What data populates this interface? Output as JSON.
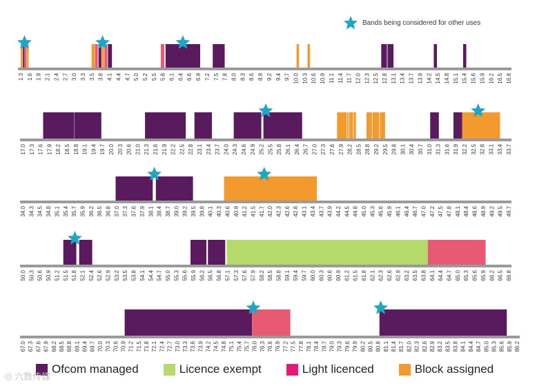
{
  "colors": {
    "ofcom_managed": "#5a1a5e",
    "licence_exempt": "#b5d96b",
    "light_licenced": "#e85a72",
    "block_assigned": "#f39a2e",
    "star": "#1fa6c4",
    "axis": "#9a9a9a"
  },
  "star_legend": {
    "label": "Bands being considered for other uses",
    "icon": "star-icon"
  },
  "legend": [
    {
      "label": "Ofcom managed",
      "color": "#5a1a5e"
    },
    {
      "label": "Licence exempt",
      "color": "#b5d96b"
    },
    {
      "label": "Light licenced",
      "color": "#e85a72"
    },
    {
      "label": "Block assigned",
      "color": "#f39a2e"
    }
  ],
  "watermark": {
    "text": "六数传媒"
  },
  "chart_data": [
    {
      "type": "bar",
      "xlabel": "",
      "ylabel": "",
      "x_range": [
        1.3,
        16.8
      ],
      "ticks": [
        "1.3",
        "1.6",
        "1.9",
        "2.1",
        "2.4",
        "2.7",
        "3.0",
        "3.3",
        "3.5",
        "3.8",
        "4.1",
        "4.4",
        "4.7",
        "5.0",
        "5.2",
        "5.5",
        "5.8",
        "6.1",
        "6.4",
        "6.6",
        "6.9",
        "7.2",
        "7.5",
        "7.8",
        "8.0",
        "8.3",
        "8.6",
        "8.9",
        "9.2",
        "9.4",
        "9.7",
        "10.0",
        "10.3",
        "10.6",
        "10.9",
        "11.1",
        "11.4",
        "11.7",
        "12.0",
        "12.3",
        "12.5",
        "12.8",
        "13.1",
        "13.4",
        "13.7",
        "13.9",
        "14.2",
        "14.5",
        "14.8",
        "15.1",
        "15.4",
        "15.6",
        "15.9",
        "16.2",
        "16.5",
        "16.8"
      ],
      "bands": [
        {
          "start": 1.3,
          "end": 1.36,
          "category": "block_assigned"
        },
        {
          "start": 1.37,
          "end": 1.42,
          "category": "ofcom_managed"
        },
        {
          "start": 1.43,
          "end": 1.48,
          "category": "light_licenced"
        },
        {
          "start": 1.49,
          "end": 1.55,
          "category": "block_assigned"
        },
        {
          "start": 3.55,
          "end": 3.65,
          "category": "block_assigned"
        },
        {
          "start": 3.66,
          "end": 3.75,
          "category": "light_licenced"
        },
        {
          "start": 3.77,
          "end": 3.86,
          "category": "ofcom_managed"
        },
        {
          "start": 3.87,
          "end": 3.95,
          "category": "block_assigned"
        },
        {
          "start": 3.96,
          "end": 4.05,
          "category": "light_licenced"
        },
        {
          "start": 4.07,
          "end": 4.2,
          "category": "ofcom_managed"
        },
        {
          "start": 5.75,
          "end": 5.86,
          "category": "light_licenced"
        },
        {
          "start": 5.9,
          "end": 7.0,
          "category": "ofcom_managed"
        },
        {
          "start": 7.4,
          "end": 7.78,
          "category": "ofcom_managed"
        },
        {
          "start": 10.06,
          "end": 10.14,
          "category": "block_assigned"
        },
        {
          "start": 10.41,
          "end": 10.49,
          "category": "block_assigned"
        },
        {
          "start": 12.75,
          "end": 12.93,
          "category": "ofcom_managed"
        },
        {
          "start": 12.95,
          "end": 13.14,
          "category": "ofcom_managed"
        },
        {
          "start": 14.42,
          "end": 14.52,
          "category": "ofcom_managed"
        },
        {
          "start": 15.35,
          "end": 15.45,
          "category": "ofcom_managed"
        }
      ],
      "stars": [
        1.42,
        3.9,
        6.45
      ]
    },
    {
      "type": "bar",
      "xlabel": "",
      "ylabel": "",
      "x_range": [
        17.0,
        33.7
      ],
      "ticks": [
        "17.0",
        "17.3",
        "17.6",
        "17.9",
        "18.2",
        "18.5",
        "18.8",
        "19.1",
        "19.4",
        "19.7",
        "20.0",
        "20.3",
        "20.6",
        "21.0",
        "21.3",
        "21.6",
        "21.9",
        "22.2",
        "22.5",
        "22.8",
        "23.1",
        "23.4",
        "23.7",
        "24.0",
        "24.3",
        "24.6",
        "24.9",
        "25.2",
        "25.5",
        "25.8",
        "26.1",
        "26.4",
        "26.7",
        "27.0",
        "27.3",
        "27.6",
        "27.9",
        "28.2",
        "28.5",
        "28.8",
        "29.2",
        "29.5",
        "29.8",
        "30.1",
        "30.4",
        "30.7",
        "31.0",
        "31.3",
        "31.6",
        "31.9",
        "32.2",
        "32.5",
        "32.8",
        "33.1",
        "33.4",
        "33.7"
      ],
      "bands": [
        {
          "start": 17.7,
          "end": 18.77,
          "category": "ofcom_managed"
        },
        {
          "start": 18.78,
          "end": 19.7,
          "category": "ofcom_managed"
        },
        {
          "start": 21.2,
          "end": 22.6,
          "category": "ofcom_managed"
        },
        {
          "start": 22.9,
          "end": 23.5,
          "category": "ofcom_managed"
        },
        {
          "start": 24.25,
          "end": 25.2,
          "category": "ofcom_managed"
        },
        {
          "start": 25.27,
          "end": 26.6,
          "category": "ofcom_managed"
        },
        {
          "start": 27.8,
          "end": 28.13,
          "category": "block_assigned"
        },
        {
          "start": 28.15,
          "end": 28.2,
          "category": "block_assigned"
        },
        {
          "start": 28.22,
          "end": 28.35,
          "category": "block_assigned"
        },
        {
          "start": 28.37,
          "end": 28.45,
          "category": "block_assigned"
        },
        {
          "start": 28.81,
          "end": 29.0,
          "category": "block_assigned"
        },
        {
          "start": 29.02,
          "end": 29.25,
          "category": "block_assigned"
        },
        {
          "start": 29.27,
          "end": 29.45,
          "category": "block_assigned"
        },
        {
          "start": 31.0,
          "end": 31.3,
          "category": "ofcom_managed"
        },
        {
          "start": 31.8,
          "end": 32.1,
          "category": "ofcom_managed"
        },
        {
          "start": 32.1,
          "end": 33.4,
          "category": "block_assigned"
        }
      ],
      "stars": [
        25.35,
        32.65
      ]
    },
    {
      "type": "bar",
      "xlabel": "",
      "ylabel": "",
      "x_range": [
        34.0,
        49.7
      ],
      "ticks": [
        "34.0",
        "34.3",
        "34.5",
        "34.8",
        "35.1",
        "35.4",
        "35.7",
        "35.9",
        "36.2",
        "36.5",
        "36.8",
        "37.0",
        "37.3",
        "37.6",
        "37.9",
        "38.1",
        "38.4",
        "38.7",
        "39.0",
        "39.2",
        "39.5",
        "39.8",
        "40.1",
        "40.3",
        "40.6",
        "40.9",
        "41.2",
        "41.5",
        "41.7",
        "42.0",
        "42.3",
        "42.6",
        "42.8",
        "43.1",
        "43.4",
        "43.7",
        "43.9",
        "44.2",
        "44.5",
        "44.8",
        "45.0",
        "45.3",
        "45.6",
        "45.9",
        "46.1",
        "46.4",
        "46.7",
        "47.0",
        "47.2",
        "47.5",
        "47.8",
        "48.1",
        "48.4",
        "48.6",
        "48.9",
        "49.2",
        "49.5",
        "49.7"
      ],
      "bands": [
        {
          "start": 37.0,
          "end": 38.2,
          "category": "ofcom_managed"
        },
        {
          "start": 38.3,
          "end": 39.5,
          "category": "ofcom_managed"
        },
        {
          "start": 40.5,
          "end": 43.5,
          "category": "block_assigned"
        }
      ],
      "stars": [
        38.25,
        41.8
      ]
    },
    {
      "type": "bar",
      "xlabel": "",
      "ylabel": "",
      "x_range": [
        50.0,
        66.8
      ],
      "ticks": [
        "50.0",
        "50.3",
        "50.6",
        "50.9",
        "51.2",
        "51.5",
        "51.8",
        "52.1",
        "52.4",
        "52.6",
        "52.9",
        "53.2",
        "53.5",
        "53.8",
        "54.1",
        "54.4",
        "54.7",
        "55.0",
        "55.3",
        "55.6",
        "55.9",
        "56.2",
        "56.5",
        "56.8",
        "57.1",
        "57.3",
        "57.6",
        "57.9",
        "58.2",
        "58.5",
        "58.8",
        "59.1",
        "59.4",
        "59.7",
        "60.0",
        "60.3",
        "60.6",
        "60.9",
        "61.2",
        "61.5",
        "61.8",
        "62.1",
        "62.3",
        "62.6",
        "62.9",
        "63.2",
        "63.5",
        "63.8",
        "64.1",
        "64.4",
        "64.7",
        "65.0",
        "65.3",
        "65.6",
        "65.9",
        "66.2",
        "66.5",
        "66.8"
      ],
      "bands": [
        {
          "start": 51.4,
          "end": 51.85,
          "category": "ofcom_managed"
        },
        {
          "start": 51.95,
          "end": 52.4,
          "category": "ofcom_managed"
        },
        {
          "start": 55.8,
          "end": 56.35,
          "category": "ofcom_managed"
        },
        {
          "start": 56.4,
          "end": 57.0,
          "category": "ofcom_managed"
        },
        {
          "start": 57.05,
          "end": 64.0,
          "category": "licence_exempt"
        },
        {
          "start": 64.0,
          "end": 66.0,
          "category": "light_licenced"
        }
      ],
      "stars": [
        51.8
      ]
    },
    {
      "type": "bar",
      "xlabel": "",
      "ylabel": "",
      "x_range": [
        67.0,
        86.4
      ],
      "ticks": [
        "67.0",
        "67.3",
        "67.6",
        "67.9",
        "68.2",
        "68.5",
        "68.8",
        "69.1",
        "69.4",
        "69.7",
        "70.0",
        "70.3",
        "70.6",
        "70.9",
        "71.2",
        "71.5",
        "71.8",
        "72.1",
        "72.4",
        "72.7",
        "73.0",
        "73.3",
        "73.6",
        "73.9",
        "74.2",
        "74.5",
        "74.8",
        "75.1",
        "75.4",
        "75.7",
        "76.0",
        "76.3",
        "76.6",
        "76.9",
        "77.2",
        "77.5",
        "77.8",
        "78.1",
        "78.4",
        "78.7",
        "79.0",
        "79.3",
        "79.6",
        "79.9",
        "80.2",
        "80.5",
        "80.8",
        "81.1",
        "81.4",
        "81.7",
        "82.0",
        "82.3",
        "82.6",
        "82.9",
        "83.2",
        "83.5",
        "83.8",
        "84.1",
        "84.4",
        "84.7",
        "85.0",
        "85.3",
        "85.6",
        "85.9",
        "86.2"
      ],
      "bands": [
        {
          "start": 71.0,
          "end": 76.0,
          "category": "ofcom_managed"
        },
        {
          "start": 76.0,
          "end": 77.5,
          "category": "light_licenced"
        },
        {
          "start": 81.0,
          "end": 86.0,
          "category": "ofcom_managed"
        }
      ],
      "stars": [
        76.05,
        81.05
      ]
    }
  ]
}
